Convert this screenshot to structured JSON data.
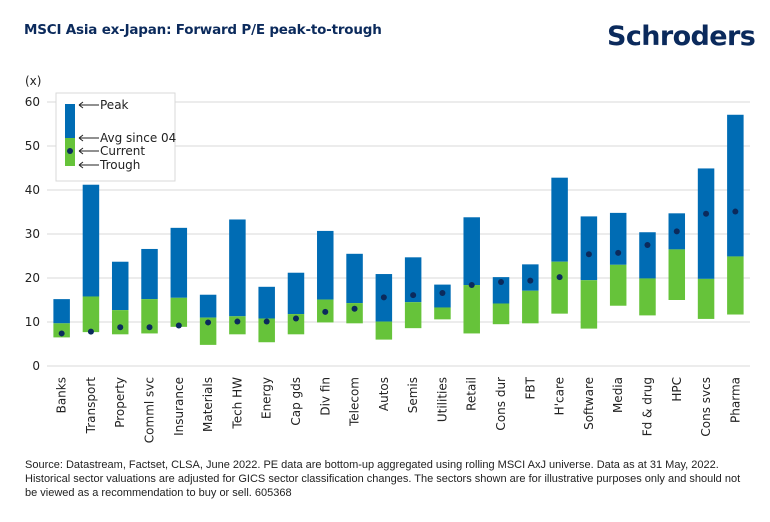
{
  "header": {
    "title": "MSCI Asia ex-Japan: Forward P/E peak-to-trough",
    "logo_text": "Schroders"
  },
  "colors": {
    "peak_bar": "#006cb4",
    "trough_bar": "#66c33a",
    "current_dot": "#0b2a5c",
    "brand": "#0b2a5c",
    "grid": "#d9d9d9"
  },
  "chart_data": {
    "type": "bar",
    "subtype": "floating-range-with-marker",
    "title": "MSCI Asia ex-Japan: Forward P/E peak-to-trough",
    "ylabel": "(x)",
    "xlabel": "",
    "ylim": [
      0,
      60
    ],
    "yticks": [
      0,
      10,
      20,
      30,
      40,
      50,
      60
    ],
    "grid": true,
    "legend_position": "top-left",
    "legend": {
      "peak": "Peak",
      "avg": "Avg since 04",
      "current": "Current",
      "trough": "Trough"
    },
    "categories": [
      "Banks",
      "Transport",
      "Property",
      "Comml svc",
      "Insurance",
      "Materials",
      "Tech HW",
      "Energy",
      "Cap gds",
      "Div fin",
      "Telecom",
      "Autos",
      "Semis",
      "Utilities",
      "Retail",
      "Cons dur",
      "FBT",
      "H'care",
      "Software",
      "Media",
      "Fd & drug",
      "HPC",
      "Cons svcs",
      "Pharma"
    ],
    "series": [
      {
        "name": "Peak",
        "values": [
          15.2,
          41.2,
          23.7,
          26.6,
          31.4,
          16.2,
          33.3,
          18.0,
          21.2,
          30.7,
          25.5,
          20.9,
          24.7,
          18.5,
          33.8,
          20.2,
          23.1,
          42.8,
          34.0,
          34.8,
          30.4,
          34.7,
          44.9,
          57.1
        ]
      },
      {
        "name": "Avg since 04",
        "values": [
          9.7,
          15.8,
          12.7,
          15.2,
          15.5,
          11.0,
          11.3,
          10.8,
          11.8,
          15.1,
          14.3,
          10.1,
          14.5,
          13.3,
          18.4,
          14.2,
          17.1,
          23.7,
          19.5,
          23.0,
          19.9,
          26.5,
          19.8,
          24.9
        ]
      },
      {
        "name": "Trough",
        "values": [
          6.5,
          7.7,
          7.2,
          7.4,
          8.9,
          4.8,
          7.2,
          5.4,
          7.2,
          9.9,
          9.7,
          6.0,
          8.6,
          10.6,
          7.4,
          9.5,
          9.7,
          11.9,
          8.5,
          13.7,
          11.5,
          15.0,
          10.7,
          11.7
        ]
      },
      {
        "name": "Current",
        "values": [
          7.4,
          7.8,
          8.8,
          8.8,
          9.2,
          9.9,
          10.1,
          10.1,
          10.8,
          12.3,
          13.0,
          15.6,
          16.1,
          16.6,
          18.4,
          19.1,
          19.4,
          20.2,
          25.4,
          25.7,
          27.5,
          30.6,
          34.6,
          35.1
        ]
      }
    ]
  },
  "footnote": "Source: Datastream, Factset, CLSA, June 2022. PE data are bottom-up aggregated using rolling MSCI AxJ universe. Data as at 31 May, 2022. Historical sector valuations are adjusted for GICS sector classification changes. The sectors shown are for illustrative purposes only and should not be viewed as a recommendation to buy or sell. 605368"
}
